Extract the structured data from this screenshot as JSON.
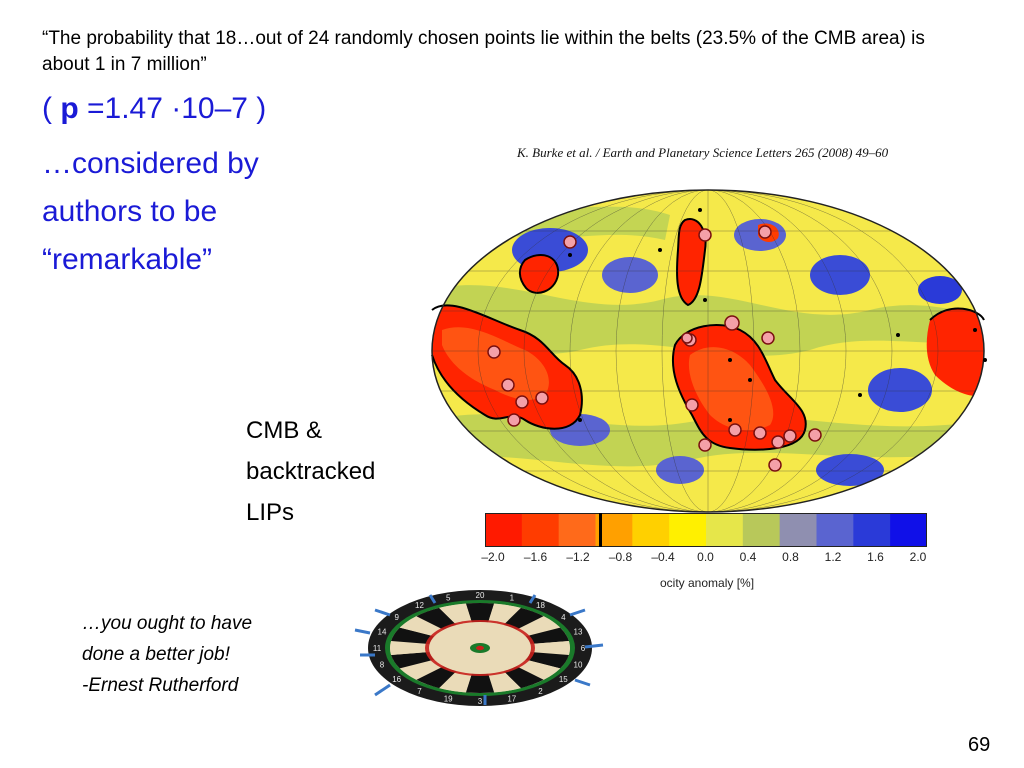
{
  "quote": "“The probability that 18…out of 24 randomly chosen points lie within the belts (23.5% of the CMB area) is about 1 in 7 million”",
  "p_value": {
    "prefix": "( ",
    "symbol": "p",
    "value": " =1.47 ·10–7 )"
  },
  "remark": "…considered by authors to be “remarkable”",
  "citation": "K. Burke et al. / Earth and Planetary Science Letters 265 (2008) 49–60",
  "cmb_label": "CMB & backtracked LIPs",
  "colorbar": {
    "ticks": [
      "–2.0",
      "–1.6",
      "–1.2",
      "–0.8",
      "–0.4",
      "0.0",
      "0.4",
      "0.8",
      "1.2",
      "1.6",
      "2.0"
    ],
    "label": "ocity anomaly [%]",
    "colors": [
      "#ff1a00",
      "#ff3c00",
      "#ff6a1a",
      "#ffa000",
      "#ffd000",
      "#fff000",
      "#e6e64a",
      "#b8c85a",
      "#8f8fb0",
      "#5a64d0",
      "#2a3ad8",
      "#1010e8"
    ]
  },
  "rutherford": [
    "…you ought to have",
    "done a better job!",
    "-Ernest Rutherford"
  ],
  "dartboard_numbers": [
    "20",
    "1",
    "18",
    "4",
    "13",
    "6",
    "10",
    "15",
    "2",
    "17",
    "3",
    "19",
    "7",
    "16",
    "8",
    "11",
    "14",
    "9",
    "12",
    "5"
  ],
  "page_number": "69"
}
